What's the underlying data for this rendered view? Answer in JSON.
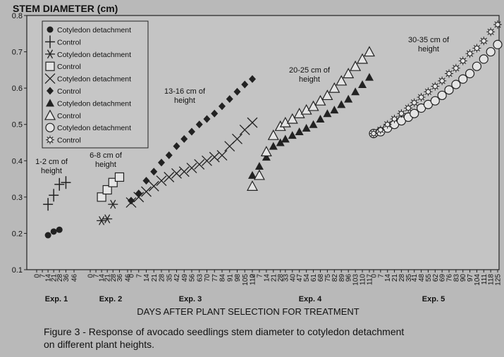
{
  "chart_data": {
    "type": "scatter",
    "ylabel": "STEM DIAMETER (cm)",
    "xlabel": "DAYS AFTER PLANT SELECTION FOR TREATMENT",
    "ylim": [
      0.1,
      0.8
    ],
    "yticks": [
      "0.1",
      "0.2",
      "0.3",
      "0.4",
      "0.5",
      "0.6",
      "0.7",
      "0.8"
    ],
    "grid": false,
    "legend_position": "top-left",
    "legend": [
      {
        "label": "Cotyledon detachment",
        "marker": "dot"
      },
      {
        "label": "Control",
        "marker": "plus"
      },
      {
        "label": "Cotyledon detachment",
        "marker": "star"
      },
      {
        "label": "Control",
        "marker": "square"
      },
      {
        "label": "Cotyledon detachment",
        "marker": "x"
      },
      {
        "label": "Control",
        "marker": "diamond"
      },
      {
        "label": "Cotyledon detachment",
        "marker": "triangle"
      },
      {
        "label": "Control",
        "marker": "triangle-open"
      },
      {
        "label": "Cotyledon detachment",
        "marker": "circle-open"
      },
      {
        "label": "Control",
        "marker": "starburst"
      }
    ],
    "experiments": [
      {
        "name": "Exp. 1",
        "annotation": [
          "1-2 cm of",
          "height"
        ],
        "ticks": [
          "0",
          "7",
          "14",
          "21",
          "28",
          "36",
          "46"
        ],
        "series": [
          {
            "marker": "dot",
            "x": [
              14,
              21,
              28
            ],
            "y": [
              0.195,
              0.205,
              0.21
            ]
          },
          {
            "marker": "plus",
            "x": [
              14,
              21,
              28,
              36
            ],
            "y": [
              0.28,
              0.305,
              0.335,
              0.34
            ]
          }
        ]
      },
      {
        "name": "Exp. 2",
        "annotation": [
          "6-8 cm of",
          "height"
        ],
        "ticks": [
          "0",
          "7",
          "14",
          "21",
          "28",
          "36",
          "46"
        ],
        "series": [
          {
            "marker": "star",
            "x": [
              14,
              21,
              28
            ],
            "y": [
              0.235,
              0.24,
              0.28
            ]
          },
          {
            "marker": "square",
            "x": [
              14,
              21,
              28,
              36
            ],
            "y": [
              0.3,
              0.32,
              0.34,
              0.355
            ]
          }
        ]
      },
      {
        "name": "Exp. 3",
        "annotation": [
          "13-16 cm of",
          "height"
        ],
        "ticks": [
          "0",
          "7",
          "14",
          "21",
          "28",
          "35",
          "42",
          "49",
          "56",
          "63",
          "70",
          "77",
          "84",
          "91",
          "98",
          "105",
          "112"
        ],
        "series": [
          {
            "marker": "x",
            "x": [
              0,
              7,
              14,
              21,
              28,
              35,
              42,
              49,
              56,
              63,
              70,
              77,
              84,
              91,
              98,
              105,
              112
            ],
            "y": [
              0.285,
              0.3,
              0.315,
              0.33,
              0.345,
              0.355,
              0.365,
              0.37,
              0.38,
              0.39,
              0.4,
              0.41,
              0.415,
              0.44,
              0.46,
              0.485,
              0.505
            ]
          },
          {
            "marker": "diamond",
            "x": [
              0,
              7,
              14,
              21,
              28,
              35,
              42,
              49,
              56,
              63,
              70,
              77,
              84,
              91,
              98,
              105,
              112
            ],
            "y": [
              0.29,
              0.31,
              0.345,
              0.37,
              0.395,
              0.415,
              0.44,
              0.46,
              0.48,
              0.5,
              0.515,
              0.53,
              0.55,
              0.57,
              0.59,
              0.61,
              0.625
            ]
          }
        ]
      },
      {
        "name": "Exp. 4",
        "annotation": [
          "20-25 cm of",
          "height"
        ],
        "ticks": [
          "0",
          "7",
          "14",
          "21",
          "28",
          "33",
          "40",
          "47",
          "54",
          "61",
          "68",
          "75",
          "82",
          "89",
          "96",
          "103",
          "110",
          "117"
        ],
        "series": [
          {
            "marker": "triangle",
            "x": [
              0,
              7,
              14,
              21,
              28,
              33,
              40,
              47,
              54,
              61,
              68,
              75,
              82,
              89,
              96,
              103,
              110,
              117
            ],
            "y": [
              0.36,
              0.385,
              0.41,
              0.44,
              0.45,
              0.46,
              0.47,
              0.48,
              0.49,
              0.5,
              0.515,
              0.53,
              0.54,
              0.555,
              0.57,
              0.59,
              0.61,
              0.63
            ]
          },
          {
            "marker": "triangle-open",
            "x": [
              0,
              7,
              14,
              21,
              28,
              33,
              40,
              47,
              54,
              61,
              68,
              75,
              82,
              89,
              96,
              103,
              110,
              117
            ],
            "y": [
              0.33,
              0.36,
              0.425,
              0.47,
              0.495,
              0.505,
              0.515,
              0.53,
              0.54,
              0.55,
              0.565,
              0.58,
              0.6,
              0.62,
              0.64,
              0.66,
              0.68,
              0.7
            ]
          }
        ]
      },
      {
        "name": "Exp. 5",
        "annotation": [
          "30-35 cm of",
          "height"
        ],
        "ticks": [
          "0",
          "7",
          "14",
          "21",
          "28",
          "35",
          "41",
          "48",
          "55",
          "62",
          "69",
          "76",
          "83",
          "90",
          "97",
          "104",
          "111",
          "118",
          "125"
        ],
        "series": [
          {
            "marker": "circle-open",
            "x": [
              0,
              7,
              14,
              21,
              28,
              35,
              41,
              48,
              55,
              62,
              69,
              76,
              83,
              90,
              97,
              104,
              111,
              118,
              125
            ],
            "y": [
              0.475,
              0.48,
              0.49,
              0.5,
              0.51,
              0.52,
              0.53,
              0.545,
              0.555,
              0.565,
              0.58,
              0.595,
              0.61,
              0.625,
              0.64,
              0.66,
              0.68,
              0.7,
              0.72
            ]
          },
          {
            "marker": "starburst",
            "x": [
              0,
              7,
              14,
              21,
              28,
              35,
              41,
              48,
              55,
              62,
              69,
              76,
              83,
              90,
              97,
              104,
              111,
              118,
              125
            ],
            "y": [
              0.475,
              0.485,
              0.5,
              0.515,
              0.53,
              0.545,
              0.56,
              0.575,
              0.59,
              0.605,
              0.62,
              0.64,
              0.655,
              0.675,
              0.695,
              0.71,
              0.73,
              0.755,
              0.775
            ]
          }
        ]
      }
    ]
  },
  "caption": {
    "line1": "Figure 3 - Response of avocado seedlings stem diameter to cotyledon detachment",
    "line2": "on different plant heights."
  }
}
